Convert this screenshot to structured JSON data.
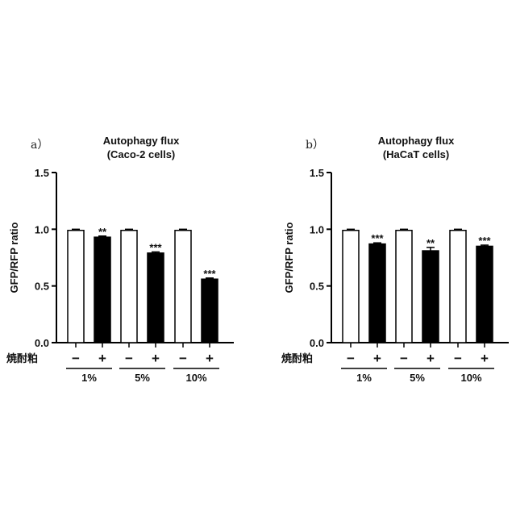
{
  "chart_data": [
    {
      "type": "bar",
      "panel_label": "a）",
      "title": "Autophagy flux",
      "subtitle": "(Caco-2 cells)",
      "ylabel": "GFP/RFP ratio",
      "ylim": [
        0,
        1.5
      ],
      "yticks": [
        "0.0",
        "0.5",
        "1.0",
        "1.5"
      ],
      "treatment_label": "焼酎粕",
      "treatment_signs": [
        "−",
        "+",
        "−",
        "+",
        "−",
        "+"
      ],
      "groups": [
        "1%",
        "5%",
        "10%"
      ],
      "values": [
        0.99,
        0.93,
        0.99,
        0.79,
        0.99,
        0.56
      ],
      "errors": [
        0.01,
        0.01,
        0.01,
        0.01,
        0.01,
        0.01
      ],
      "fills": [
        "#ffffff",
        "#000000",
        "#ffffff",
        "#000000",
        "#ffffff",
        "#000000"
      ],
      "significance": [
        "",
        "**",
        "",
        "***",
        "",
        "***"
      ]
    },
    {
      "type": "bar",
      "panel_label": "b）",
      "title": "Autophagy flux",
      "subtitle": "(HaCaT cells)",
      "ylabel": "GFP/RFP ratio",
      "ylim": [
        0,
        1.5
      ],
      "yticks": [
        "0.0",
        "0.5",
        "1.0",
        "1.5"
      ],
      "treatment_label": "焼酎粕",
      "treatment_signs": [
        "−",
        "+",
        "−",
        "+",
        "−",
        "+"
      ],
      "groups": [
        "1%",
        "5%",
        "10%"
      ],
      "values": [
        0.99,
        0.87,
        0.99,
        0.81,
        0.99,
        0.85
      ],
      "errors": [
        0.01,
        0.01,
        0.01,
        0.03,
        0.01,
        0.01
      ],
      "fills": [
        "#ffffff",
        "#000000",
        "#ffffff",
        "#000000",
        "#ffffff",
        "#000000"
      ],
      "significance": [
        "",
        "***",
        "",
        "**",
        "",
        "***"
      ]
    }
  ]
}
